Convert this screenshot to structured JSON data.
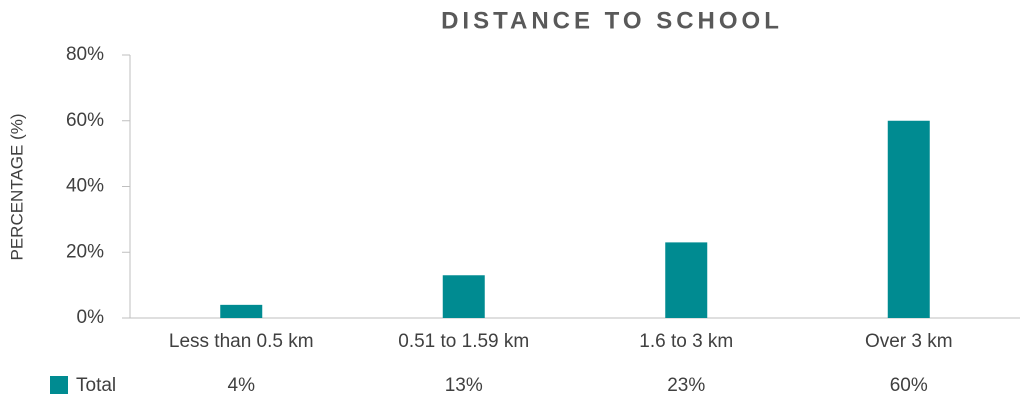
{
  "chart_data": {
    "type": "bar",
    "title": "DISTANCE TO SCHOOL",
    "y_label": "PERCENTAGE (%)",
    "categories": [
      "Less than 0.5 km",
      "0.51 to 1.59 km",
      "1.6 to 3 km",
      "Over 3 km"
    ],
    "series": [
      {
        "name": "Total",
        "color": "#008b91",
        "values": [
          4,
          13,
          23,
          60
        ],
        "value_labels": [
          "4%",
          "13%",
          "23%",
          "60%"
        ]
      }
    ],
    "ylim": [
      0,
      80
    ],
    "yticks": [
      {
        "value": 0,
        "label": "0%"
      },
      {
        "value": 20,
        "label": "20%"
      },
      {
        "value": 40,
        "label": "40%"
      },
      {
        "value": 60,
        "label": "60%"
      },
      {
        "value": 80,
        "label": "80%"
      }
    ],
    "grid": false
  }
}
